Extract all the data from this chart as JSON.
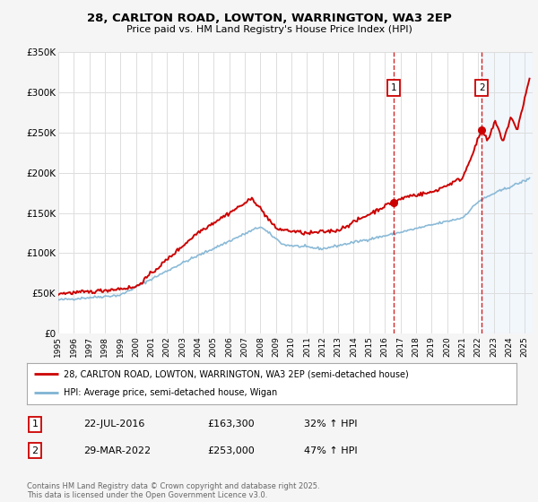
{
  "title": "28, CARLTON ROAD, LOWTON, WARRINGTON, WA3 2EP",
  "subtitle": "Price paid vs. HM Land Registry's House Price Index (HPI)",
  "legend_label_red": "28, CARLTON ROAD, LOWTON, WARRINGTON, WA3 2EP (semi-detached house)",
  "legend_label_blue": "HPI: Average price, semi-detached house, Wigan",
  "footer": "Contains HM Land Registry data © Crown copyright and database right 2025.\nThis data is licensed under the Open Government Licence v3.0.",
  "table": [
    {
      "num": "1",
      "date": "22-JUL-2016",
      "price": "£163,300",
      "change": "32% ↑ HPI"
    },
    {
      "num": "2",
      "date": "29-MAR-2022",
      "price": "£253,000",
      "change": "47% ↑ HPI"
    }
  ],
  "vline1_x": 2016.55,
  "vline2_x": 2022.24,
  "marker1_x": 2016.55,
  "marker1_y": 163300,
  "marker2_x": 2022.24,
  "marker2_y": 253000,
  "num1_y": 305000,
  "num2_y": 305000,
  "ylim": [
    0,
    350000
  ],
  "xlim": [
    1995,
    2025.5
  ],
  "ylabel_ticks": [
    0,
    50000,
    100000,
    150000,
    200000,
    250000,
    300000,
    350000
  ],
  "ylabel_labels": [
    "£0",
    "£50K",
    "£100K",
    "£150K",
    "£200K",
    "£250K",
    "£300K",
    "£350K"
  ],
  "xtick_years": [
    1995,
    1996,
    1997,
    1998,
    1999,
    2000,
    2001,
    2002,
    2003,
    2004,
    2005,
    2006,
    2007,
    2008,
    2009,
    2010,
    2011,
    2012,
    2013,
    2014,
    2015,
    2016,
    2017,
    2018,
    2019,
    2020,
    2021,
    2022,
    2023,
    2024,
    2025
  ],
  "red_color": "#cc0000",
  "blue_color": "#7fb3d3",
  "vline1_color": "#cc0000",
  "vline2_color": "#cc0000",
  "background_color": "#f5f5f5",
  "plot_bg_color": "#ffffff",
  "grid_color": "#dddddd",
  "vline2_bg": "#e8f0f8"
}
